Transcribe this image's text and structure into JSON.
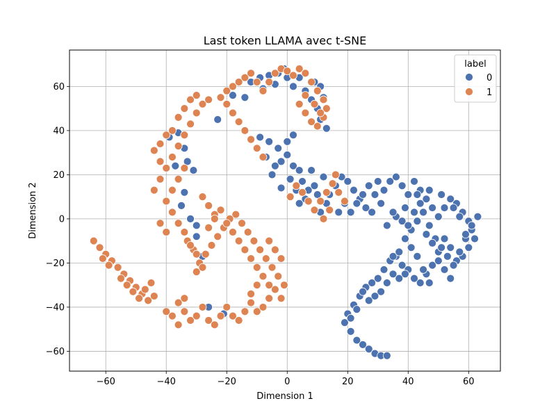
{
  "chart_data": {
    "type": "scatter",
    "title": "Last token LLAMA avec t-SNE",
    "xlabel": "Dimension 1",
    "ylabel": "Dimension 2",
    "xlim": [
      -72,
      70.5
    ],
    "ylim": [
      -69,
      76.5
    ],
    "xticks": [
      -60,
      -40,
      -20,
      0,
      20,
      40,
      60
    ],
    "yticks": [
      -60,
      -40,
      -20,
      0,
      20,
      40,
      60
    ],
    "xtick_labels": [
      "−60",
      "−40",
      "−20",
      "0",
      "20",
      "40",
      "60"
    ],
    "ytick_labels": [
      "−60",
      "−40",
      "−20",
      "0",
      "20",
      "40",
      "60"
    ],
    "grid": true,
    "legend": {
      "title": "label",
      "placement": "top-right",
      "entries": [
        {
          "label": "0",
          "color": "#4c72b0"
        },
        {
          "label": "1",
          "color": "#dd8452"
        }
      ]
    },
    "series": [
      {
        "name": "0",
        "color": "#4c72b0",
        "points": [
          [
            -39,
            37
          ],
          [
            -36,
            39
          ],
          [
            -34,
            32
          ],
          [
            -33,
            26
          ],
          [
            -31,
            22
          ],
          [
            -37,
            24
          ],
          [
            -35,
            6
          ],
          [
            -32,
            0
          ],
          [
            -30,
            -8
          ],
          [
            -34,
            12
          ],
          [
            -28,
            -17
          ],
          [
            -30,
            -3
          ],
          [
            -21,
            -43
          ],
          [
            -26,
            -40
          ],
          [
            -23,
            45
          ],
          [
            -18,
            56
          ],
          [
            -14,
            55
          ],
          [
            -12,
            62
          ],
          [
            -9,
            64
          ],
          [
            -6,
            65
          ],
          [
            -3,
            66
          ],
          [
            -1,
            68
          ],
          [
            0,
            64
          ],
          [
            -4,
            61
          ],
          [
            -8,
            59
          ],
          [
            2,
            60
          ],
          [
            4,
            64
          ],
          [
            6,
            58
          ],
          [
            8,
            54
          ],
          [
            10,
            50
          ],
          [
            11,
            45
          ],
          [
            13,
            41
          ],
          [
            12,
            55
          ],
          [
            9,
            62
          ],
          [
            11,
            60
          ],
          [
            -9,
            37
          ],
          [
            -6,
            35
          ],
          [
            -3,
            32
          ],
          [
            -7,
            28
          ],
          [
            -2,
            26
          ],
          [
            0,
            29
          ],
          [
            2,
            24
          ],
          [
            1,
            18
          ],
          [
            3,
            13
          ],
          [
            -2,
            14
          ],
          [
            4,
            22
          ],
          [
            -5,
            20
          ],
          [
            0,
            35
          ],
          [
            2,
            38
          ],
          [
            -4,
            24
          ],
          [
            5,
            17
          ],
          [
            7,
            13
          ],
          [
            6,
            9
          ],
          [
            4,
            7
          ],
          [
            9,
            15
          ],
          [
            12,
            19
          ],
          [
            8,
            22
          ],
          [
            10,
            11
          ],
          [
            13,
            7
          ],
          [
            11,
            3
          ],
          [
            14,
            11
          ],
          [
            16,
            15
          ],
          [
            18,
            19
          ],
          [
            20,
            17
          ],
          [
            22,
            13
          ],
          [
            24,
            9
          ],
          [
            26,
            5
          ],
          [
            19,
            7
          ],
          [
            17,
            3
          ],
          [
            21,
            3
          ],
          [
            23,
            7
          ],
          [
            25,
            11
          ],
          [
            27,
            15
          ],
          [
            29,
            11
          ],
          [
            31,
            7
          ],
          [
            28,
            3
          ],
          [
            30,
            17
          ],
          [
            32,
            13
          ],
          [
            34,
            17
          ],
          [
            36,
            19
          ],
          [
            38,
            15
          ],
          [
            40,
            11
          ],
          [
            42,
            17
          ],
          [
            44,
            13
          ],
          [
            46,
            9
          ],
          [
            48,
            5
          ],
          [
            50,
            1
          ],
          [
            52,
            5
          ],
          [
            54,
            9
          ],
          [
            56,
            7
          ],
          [
            58,
            3
          ],
          [
            60,
            -1
          ],
          [
            61,
            -5
          ],
          [
            62,
            -9
          ],
          [
            60,
            -13
          ],
          [
            58,
            -17
          ],
          [
            56,
            -19
          ],
          [
            54,
            -13
          ],
          [
            52,
            -9
          ],
          [
            50,
            -15
          ],
          [
            48,
            -21
          ],
          [
            46,
            -25
          ],
          [
            44,
            -29
          ],
          [
            42,
            -27
          ],
          [
            40,
            -23
          ],
          [
            38,
            -21
          ],
          [
            36,
            -17
          ],
          [
            34,
            -19
          ],
          [
            32,
            -23
          ],
          [
            30,
            -27
          ],
          [
            28,
            -29
          ],
          [
            26,
            -31
          ],
          [
            24,
            -35
          ],
          [
            22,
            -39
          ],
          [
            20,
            -43
          ],
          [
            19,
            -47
          ],
          [
            21,
            -51
          ],
          [
            23,
            -55
          ],
          [
            25,
            -57
          ],
          [
            27,
            -59
          ],
          [
            29,
            -61
          ],
          [
            31,
            -62
          ],
          [
            33,
            -62
          ],
          [
            35,
            -17
          ],
          [
            37,
            -15
          ],
          [
            39,
            -9
          ],
          [
            41,
            -5
          ],
          [
            43,
            -1
          ],
          [
            45,
            3
          ],
          [
            47,
            -3
          ],
          [
            49,
            -9
          ],
          [
            51,
            -13
          ],
          [
            53,
            -17
          ],
          [
            55,
            -21
          ],
          [
            57,
            -15
          ],
          [
            59,
            -9
          ],
          [
            61,
            -3
          ],
          [
            63,
            1
          ],
          [
            36,
            1
          ],
          [
            38,
            -1
          ],
          [
            40,
            -3
          ],
          [
            42,
            3
          ],
          [
            44,
            7
          ],
          [
            46,
            -7
          ],
          [
            48,
            -11
          ],
          [
            50,
            -19
          ],
          [
            52,
            -23
          ],
          [
            54,
            -27
          ],
          [
            47,
            -29
          ],
          [
            45,
            -23
          ],
          [
            43,
            -17
          ],
          [
            41,
            -13
          ],
          [
            39,
            -25
          ],
          [
            37,
            -27
          ],
          [
            35,
            -25
          ],
          [
            33,
            -29
          ],
          [
            31,
            -33
          ],
          [
            29,
            -35
          ],
          [
            27,
            -37
          ],
          [
            25,
            -33
          ],
          [
            23,
            -41
          ],
          [
            21,
            -45
          ],
          [
            33,
            -3
          ],
          [
            35,
            3
          ],
          [
            39,
            5
          ],
          [
            43,
            11
          ],
          [
            47,
            13
          ],
          [
            51,
            11
          ],
          [
            55,
            5
          ],
          [
            57,
            1
          ],
          [
            59,
            -7
          ]
        ]
      },
      {
        "name": "1",
        "color": "#dd8452",
        "points": [
          [
            -64,
            -10
          ],
          [
            -62,
            -13
          ],
          [
            -60,
            -16
          ],
          [
            -58,
            -19
          ],
          [
            -56,
            -22
          ],
          [
            -54,
            -25
          ],
          [
            -52,
            -28
          ],
          [
            -50,
            -31
          ],
          [
            -48,
            -34
          ],
          [
            -46,
            -37
          ],
          [
            -44,
            -35
          ],
          [
            -61,
            -18
          ],
          [
            -59,
            -21
          ],
          [
            -55,
            -27
          ],
          [
            -53,
            -30
          ],
          [
            -51,
            -33
          ],
          [
            -49,
            -36
          ],
          [
            -47,
            -32
          ],
          [
            -45,
            -29
          ],
          [
            -36,
            -38
          ],
          [
            -34,
            -42
          ],
          [
            -32,
            -46
          ],
          [
            -30,
            -44
          ],
          [
            -28,
            -40
          ],
          [
            -26,
            -46
          ],
          [
            -24,
            -48
          ],
          [
            -22,
            -44
          ],
          [
            -20,
            -40
          ],
          [
            -18,
            -44
          ],
          [
            -16,
            -46
          ],
          [
            -14,
            -42
          ],
          [
            -12,
            -38
          ],
          [
            -10,
            -42
          ],
          [
            -8,
            -40
          ],
          [
            -6,
            -36
          ],
          [
            -4,
            -32
          ],
          [
            -2,
            -36
          ],
          [
            -1,
            -30
          ],
          [
            -3,
            -26
          ],
          [
            -5,
            -22
          ],
          [
            -7,
            -18
          ],
          [
            -9,
            -14
          ],
          [
            -11,
            -10
          ],
          [
            -13,
            -6
          ],
          [
            -15,
            -2
          ],
          [
            -17,
            2
          ],
          [
            -19,
            0
          ],
          [
            -21,
            -4
          ],
          [
            -23,
            -8
          ],
          [
            -25,
            -12
          ],
          [
            -27,
            -16
          ],
          [
            -29,
            -20
          ],
          [
            -31,
            -14
          ],
          [
            -33,
            -10
          ],
          [
            -30,
            -24
          ],
          [
            -28,
            -22
          ],
          [
            -26,
            -4
          ],
          [
            -24,
            2
          ],
          [
            -22,
            4
          ],
          [
            -20,
            -2
          ],
          [
            -18,
            -6
          ],
          [
            -16,
            -10
          ],
          [
            -14,
            -14
          ],
          [
            -12,
            -18
          ],
          [
            -10,
            -22
          ],
          [
            -8,
            -26
          ],
          [
            -6,
            -30
          ],
          [
            -4,
            -14
          ],
          [
            -2,
            -18
          ],
          [
            -6,
            -10
          ],
          [
            -10,
            -30
          ],
          [
            -12,
            -34
          ],
          [
            -38,
            -44
          ],
          [
            -36,
            -48
          ],
          [
            -34,
            -36
          ],
          [
            -40,
            -42
          ],
          [
            -44,
            13
          ],
          [
            -42,
            18
          ],
          [
            -40,
            23
          ],
          [
            -38,
            28
          ],
          [
            -36,
            33
          ],
          [
            -34,
            38
          ],
          [
            -32,
            43
          ],
          [
            -30,
            48
          ],
          [
            -28,
            52
          ],
          [
            -26,
            54
          ],
          [
            -44,
            31
          ],
          [
            -42,
            26
          ],
          [
            -40,
            8
          ],
          [
            -38,
            3
          ],
          [
            -36,
            -2
          ],
          [
            -34,
            -6
          ],
          [
            -32,
            -12
          ],
          [
            -30,
            -16
          ],
          [
            -28,
            10
          ],
          [
            -26,
            6
          ],
          [
            -24,
            0
          ],
          [
            -42,
            -2
          ],
          [
            -40,
            -6
          ],
          [
            -38,
            13
          ],
          [
            -36,
            18
          ],
          [
            -34,
            23
          ],
          [
            -42,
            34
          ],
          [
            -40,
            38
          ],
          [
            -38,
            40
          ],
          [
            -36,
            46
          ],
          [
            -34,
            50
          ],
          [
            -32,
            54
          ],
          [
            -30,
            56
          ],
          [
            -22,
            55
          ],
          [
            -20,
            58
          ],
          [
            -18,
            60
          ],
          [
            -16,
            62
          ],
          [
            -14,
            64
          ],
          [
            -12,
            66
          ],
          [
            -10,
            62
          ],
          [
            -8,
            58
          ],
          [
            -6,
            62
          ],
          [
            -4,
            66
          ],
          [
            -2,
            68
          ],
          [
            0,
            67
          ],
          [
            2,
            65
          ],
          [
            4,
            68
          ],
          [
            6,
            66
          ],
          [
            8,
            62
          ],
          [
            10,
            58
          ],
          [
            12,
            54
          ],
          [
            13,
            50
          ],
          [
            12,
            46
          ],
          [
            10,
            42
          ],
          [
            8,
            44
          ],
          [
            6,
            48
          ],
          [
            4,
            52
          ],
          [
            6,
            56
          ],
          [
            9,
            52
          ],
          [
            11,
            48
          ],
          [
            1,
            10
          ],
          [
            3,
            15
          ],
          [
            5,
            12
          ],
          [
            7,
            8
          ],
          [
            9,
            4
          ],
          [
            11,
            8
          ],
          [
            13,
            12
          ],
          [
            15,
            16
          ],
          [
            17,
            12
          ],
          [
            19,
            8
          ],
          [
            16,
            20
          ],
          [
            14,
            4
          ],
          [
            12,
            0
          ],
          [
            -8,
            28
          ],
          [
            -10,
            32
          ],
          [
            -12,
            36
          ],
          [
            -14,
            40
          ],
          [
            -16,
            44
          ],
          [
            -18,
            48
          ],
          [
            -20,
            52
          ]
        ]
      }
    ]
  }
}
